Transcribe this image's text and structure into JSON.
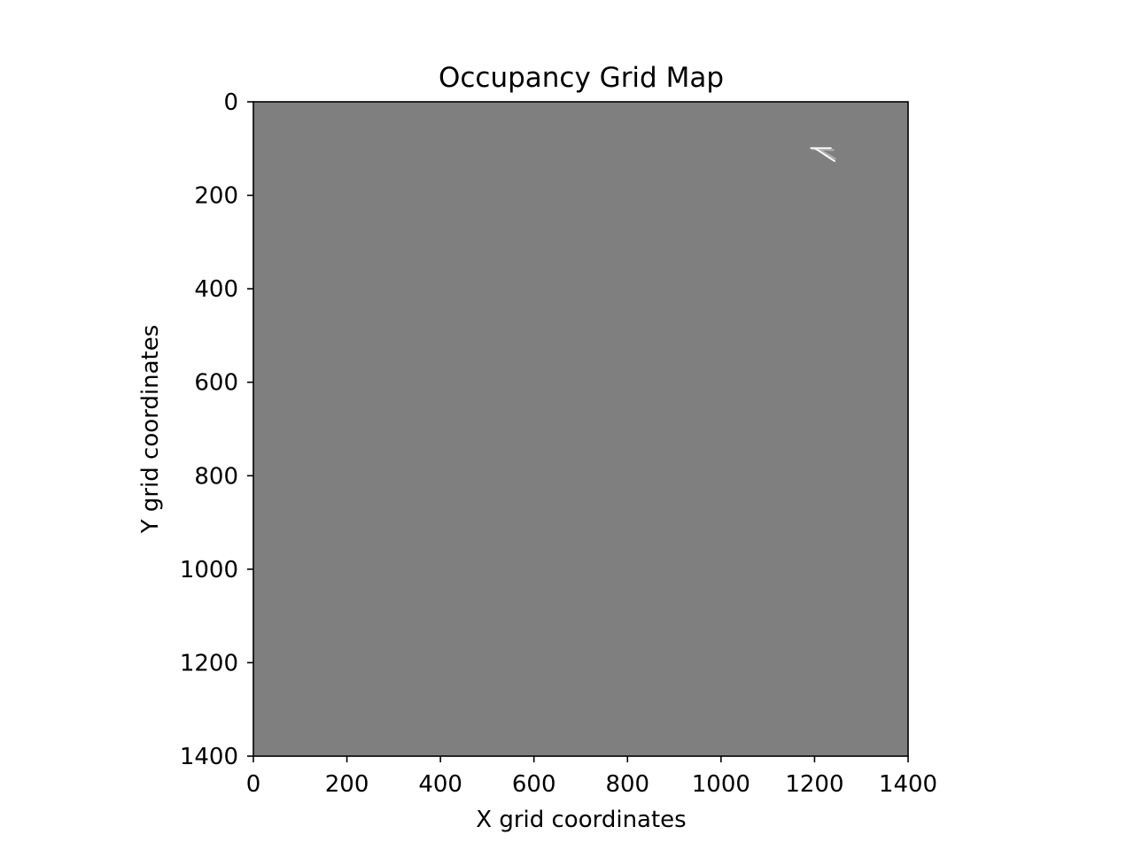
{
  "chart_data": {
    "type": "heatmap",
    "title": "Occupancy Grid Map",
    "xlabel": "X grid coordinates",
    "ylabel": "Y grid coordinates",
    "xlim": [
      0,
      1400
    ],
    "ylim": [
      1400,
      0
    ],
    "y_axis_inverted": true,
    "colormap": "gray",
    "grid": false,
    "legend": "none",
    "x_ticks": [
      "0",
      "200",
      "400",
      "600",
      "800",
      "1000",
      "1200",
      "1400"
    ],
    "y_ticks": [
      "0",
      "200",
      "400",
      "600",
      "800",
      "1000",
      "1200",
      "1400"
    ],
    "unknown_cell_color": "#7f7f7f",
    "observed_region": {
      "description_level": "visible sensor sweep",
      "free_cells_color": "#ffffff",
      "partial_cells_color": "#bdbdbd",
      "free_segments": [
        {
          "x0": 1192,
          "y0": 99,
          "x1": 1235,
          "y1": 99
        },
        {
          "x0": 1200,
          "y0": 99,
          "x1": 1243,
          "y1": 127
        }
      ],
      "partial_segments": [
        {
          "x0": 1195,
          "y0": 101,
          "x1": 1240,
          "y1": 103
        },
        {
          "x0": 1205,
          "y0": 101,
          "x1": 1238,
          "y1": 124
        },
        {
          "x0": 1212,
          "y0": 103,
          "x1": 1244,
          "y1": 122
        }
      ]
    }
  }
}
